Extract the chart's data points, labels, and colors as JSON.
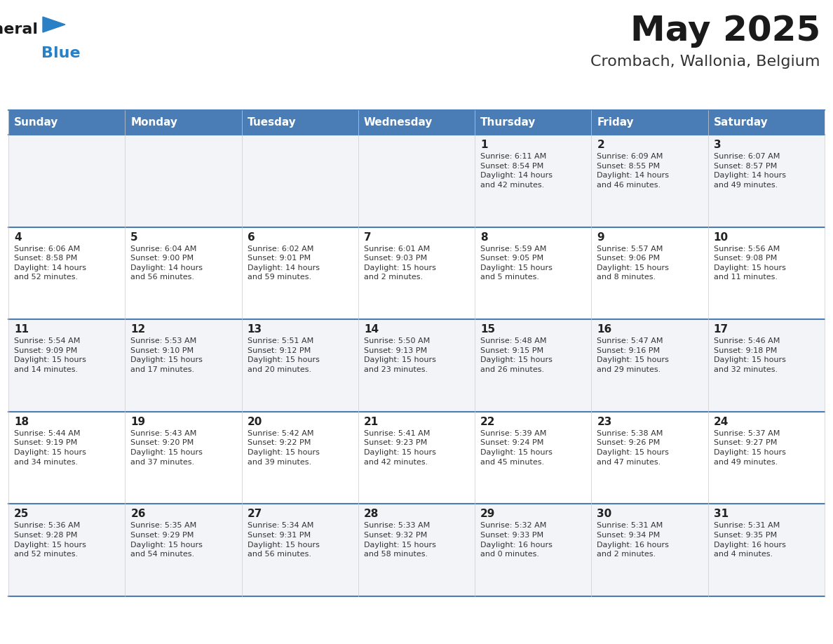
{
  "title": "May 2025",
  "subtitle": "Crombach, Wallonia, Belgium",
  "days_of_week": [
    "Sunday",
    "Monday",
    "Tuesday",
    "Wednesday",
    "Thursday",
    "Friday",
    "Saturday"
  ],
  "header_bg": "#4A7DB5",
  "header_text": "#FFFFFF",
  "cell_bg_odd": "#F2F4F7",
  "cell_bg_even": "#FFFFFF",
  "cell_border_color": "#4A7DB5",
  "row_sep_color": "#4A7DB5",
  "day_number_color": "#222222",
  "content_color": "#333333",
  "title_color": "#1a1a1a",
  "subtitle_color": "#333333",
  "logo_text_color": "#1a1a1a",
  "logo_blue_color": "#2980C4",
  "weeks": [
    {
      "days": [
        {
          "date": null,
          "info": null
        },
        {
          "date": null,
          "info": null
        },
        {
          "date": null,
          "info": null
        },
        {
          "date": null,
          "info": null
        },
        {
          "date": 1,
          "info": "Sunrise: 6:11 AM\nSunset: 8:54 PM\nDaylight: 14 hours\nand 42 minutes."
        },
        {
          "date": 2,
          "info": "Sunrise: 6:09 AM\nSunset: 8:55 PM\nDaylight: 14 hours\nand 46 minutes."
        },
        {
          "date": 3,
          "info": "Sunrise: 6:07 AM\nSunset: 8:57 PM\nDaylight: 14 hours\nand 49 minutes."
        }
      ]
    },
    {
      "days": [
        {
          "date": 4,
          "info": "Sunrise: 6:06 AM\nSunset: 8:58 PM\nDaylight: 14 hours\nand 52 minutes."
        },
        {
          "date": 5,
          "info": "Sunrise: 6:04 AM\nSunset: 9:00 PM\nDaylight: 14 hours\nand 56 minutes."
        },
        {
          "date": 6,
          "info": "Sunrise: 6:02 AM\nSunset: 9:01 PM\nDaylight: 14 hours\nand 59 minutes."
        },
        {
          "date": 7,
          "info": "Sunrise: 6:01 AM\nSunset: 9:03 PM\nDaylight: 15 hours\nand 2 minutes."
        },
        {
          "date": 8,
          "info": "Sunrise: 5:59 AM\nSunset: 9:05 PM\nDaylight: 15 hours\nand 5 minutes."
        },
        {
          "date": 9,
          "info": "Sunrise: 5:57 AM\nSunset: 9:06 PM\nDaylight: 15 hours\nand 8 minutes."
        },
        {
          "date": 10,
          "info": "Sunrise: 5:56 AM\nSunset: 9:08 PM\nDaylight: 15 hours\nand 11 minutes."
        }
      ]
    },
    {
      "days": [
        {
          "date": 11,
          "info": "Sunrise: 5:54 AM\nSunset: 9:09 PM\nDaylight: 15 hours\nand 14 minutes."
        },
        {
          "date": 12,
          "info": "Sunrise: 5:53 AM\nSunset: 9:10 PM\nDaylight: 15 hours\nand 17 minutes."
        },
        {
          "date": 13,
          "info": "Sunrise: 5:51 AM\nSunset: 9:12 PM\nDaylight: 15 hours\nand 20 minutes."
        },
        {
          "date": 14,
          "info": "Sunrise: 5:50 AM\nSunset: 9:13 PM\nDaylight: 15 hours\nand 23 minutes."
        },
        {
          "date": 15,
          "info": "Sunrise: 5:48 AM\nSunset: 9:15 PM\nDaylight: 15 hours\nand 26 minutes."
        },
        {
          "date": 16,
          "info": "Sunrise: 5:47 AM\nSunset: 9:16 PM\nDaylight: 15 hours\nand 29 minutes."
        },
        {
          "date": 17,
          "info": "Sunrise: 5:46 AM\nSunset: 9:18 PM\nDaylight: 15 hours\nand 32 minutes."
        }
      ]
    },
    {
      "days": [
        {
          "date": 18,
          "info": "Sunrise: 5:44 AM\nSunset: 9:19 PM\nDaylight: 15 hours\nand 34 minutes."
        },
        {
          "date": 19,
          "info": "Sunrise: 5:43 AM\nSunset: 9:20 PM\nDaylight: 15 hours\nand 37 minutes."
        },
        {
          "date": 20,
          "info": "Sunrise: 5:42 AM\nSunset: 9:22 PM\nDaylight: 15 hours\nand 39 minutes."
        },
        {
          "date": 21,
          "info": "Sunrise: 5:41 AM\nSunset: 9:23 PM\nDaylight: 15 hours\nand 42 minutes."
        },
        {
          "date": 22,
          "info": "Sunrise: 5:39 AM\nSunset: 9:24 PM\nDaylight: 15 hours\nand 45 minutes."
        },
        {
          "date": 23,
          "info": "Sunrise: 5:38 AM\nSunset: 9:26 PM\nDaylight: 15 hours\nand 47 minutes."
        },
        {
          "date": 24,
          "info": "Sunrise: 5:37 AM\nSunset: 9:27 PM\nDaylight: 15 hours\nand 49 minutes."
        }
      ]
    },
    {
      "days": [
        {
          "date": 25,
          "info": "Sunrise: 5:36 AM\nSunset: 9:28 PM\nDaylight: 15 hours\nand 52 minutes."
        },
        {
          "date": 26,
          "info": "Sunrise: 5:35 AM\nSunset: 9:29 PM\nDaylight: 15 hours\nand 54 minutes."
        },
        {
          "date": 27,
          "info": "Sunrise: 5:34 AM\nSunset: 9:31 PM\nDaylight: 15 hours\nand 56 minutes."
        },
        {
          "date": 28,
          "info": "Sunrise: 5:33 AM\nSunset: 9:32 PM\nDaylight: 15 hours\nand 58 minutes."
        },
        {
          "date": 29,
          "info": "Sunrise: 5:32 AM\nSunset: 9:33 PM\nDaylight: 16 hours\nand 0 minutes."
        },
        {
          "date": 30,
          "info": "Sunrise: 5:31 AM\nSunset: 9:34 PM\nDaylight: 16 hours\nand 2 minutes."
        },
        {
          "date": 31,
          "info": "Sunrise: 5:31 AM\nSunset: 9:35 PM\nDaylight: 16 hours\nand 4 minutes."
        }
      ]
    }
  ]
}
